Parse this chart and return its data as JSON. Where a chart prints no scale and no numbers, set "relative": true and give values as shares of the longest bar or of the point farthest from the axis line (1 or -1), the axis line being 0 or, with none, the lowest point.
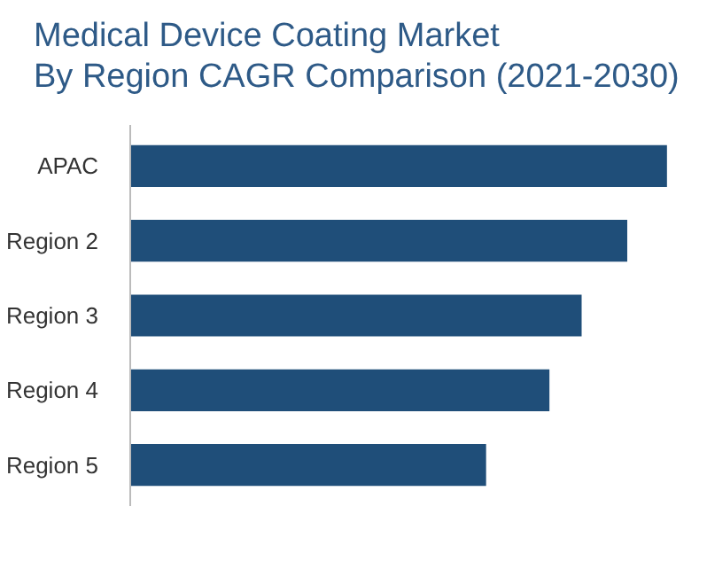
{
  "chart_data": {
    "type": "bar",
    "orientation": "horizontal",
    "relative": true,
    "title": "Medical Device Coating Market\nBy Region CAGR Comparison (2021-2030)",
    "categories": [
      "APAC",
      "Region 2",
      "Region 3",
      "Region 4",
      "Region 5"
    ],
    "values": [
      1,
      0.926,
      0.841,
      0.781,
      0.663
    ],
    "color": "#1f4e79",
    "grid": false
  }
}
